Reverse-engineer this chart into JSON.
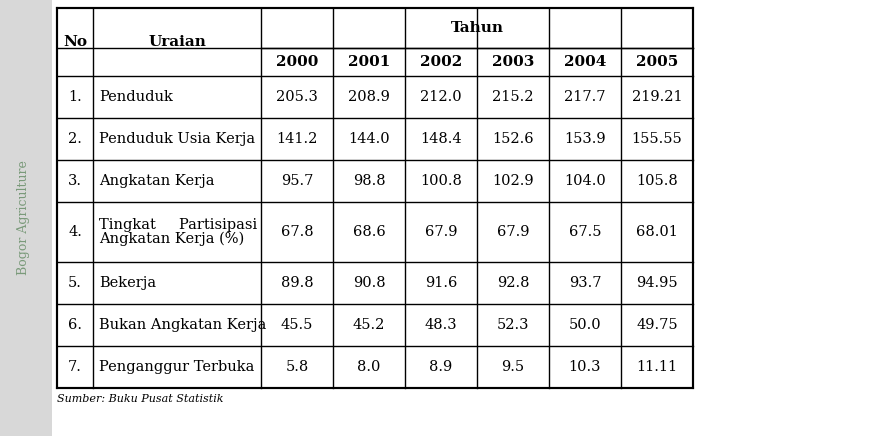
{
  "headers_no": "No",
  "headers_uraian": "Uraian",
  "headers_tahun": "Tahun",
  "years": [
    "2000",
    "2001",
    "2002",
    "2003",
    "2004",
    "2005"
  ],
  "rows": [
    {
      "no": "1.",
      "uraian": "Penduduk",
      "values": [
        "205.3",
        "208.9",
        "212.0",
        "215.2",
        "217.7",
        "219.21"
      ]
    },
    {
      "no": "2.",
      "uraian": "Penduduk Usia Kerja",
      "values": [
        "141.2",
        "144.0",
        "148.4",
        "152.6",
        "153.9",
        "155.55"
      ]
    },
    {
      "no": "3.",
      "uraian": "Angkatan Kerja",
      "values": [
        "95.7",
        "98.8",
        "100.8",
        "102.9",
        "104.0",
        "105.8"
      ]
    },
    {
      "no": "4.",
      "uraian_line1": "Tingkat     Partisipasi",
      "uraian_line2": "Angkatan Kerja (%)",
      "values": [
        "67.8",
        "68.6",
        "67.9",
        "67.9",
        "67.5",
        "68.01"
      ]
    },
    {
      "no": "5.",
      "uraian": "Bekerja",
      "values": [
        "89.8",
        "90.8",
        "91.6",
        "92.8",
        "93.7",
        "94.95"
      ]
    },
    {
      "no": "6.",
      "uraian": "Bukan Angkatan Kerja",
      "values": [
        "45.5",
        "45.2",
        "48.3",
        "52.3",
        "50.0",
        "49.75"
      ]
    },
    {
      "no": "7.",
      "uraian": "Penganggur Terbuka",
      "values": [
        "5.8",
        "8.0",
        "8.9",
        "9.5",
        "10.3",
        "11.11"
      ]
    }
  ],
  "footer": "Sumber: Buku Pusat Statistik",
  "bg_color": "#ffffff",
  "border_color": "#000000",
  "font_size": 10.5,
  "side_text": "Bogor Agriculture",
  "side_text_color": "#7a9a7a",
  "side_bg_color": "#d8d8d8"
}
